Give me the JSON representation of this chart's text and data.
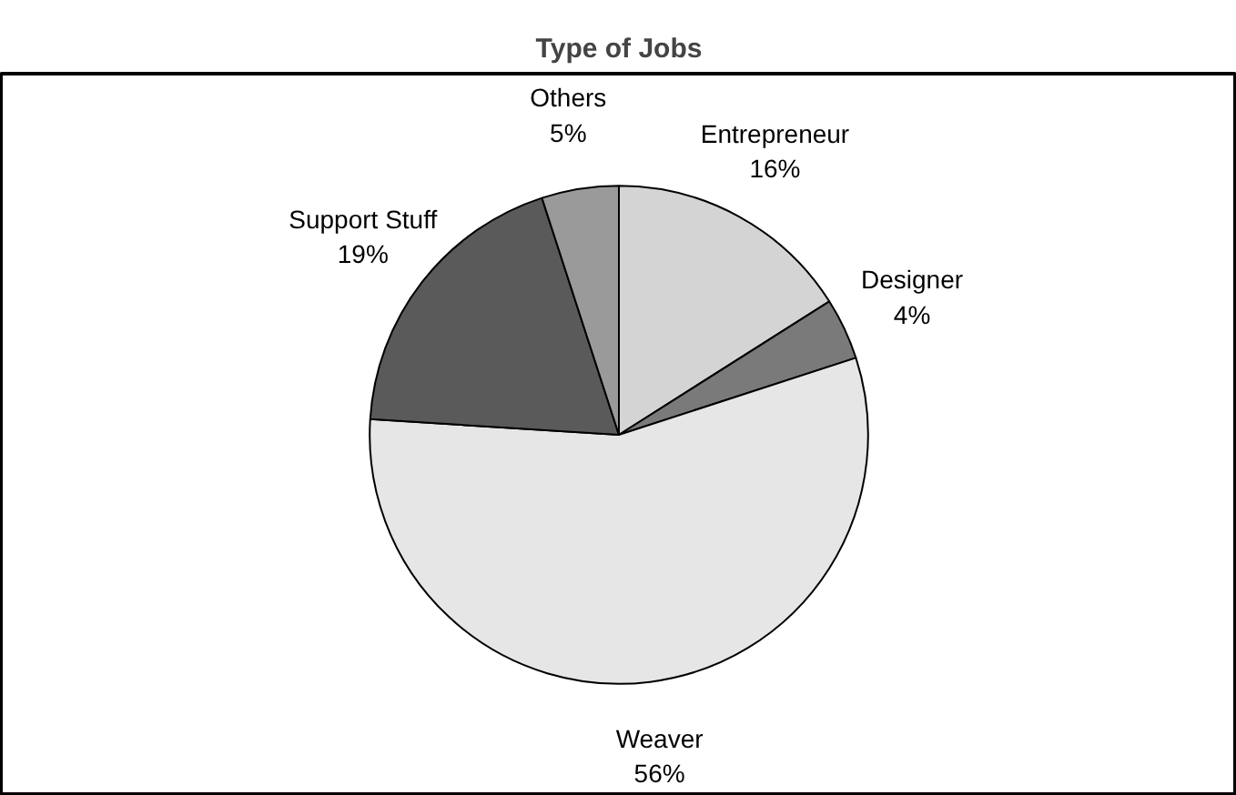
{
  "chart_data": {
    "type": "pie",
    "title": "Type of Jobs",
    "categories": [
      "Entrepreneur",
      "Designer",
      "Weaver",
      "Support Stuff",
      "Others"
    ],
    "values": [
      16,
      4,
      56,
      19,
      5
    ],
    "value_labels": [
      "16%",
      "4%",
      "56%",
      "19%",
      "5%"
    ],
    "colors": [
      "#d4d4d4",
      "#7a7a7a",
      "#e6e6e6",
      "#5a5a5a",
      "#9a9a9a"
    ]
  }
}
